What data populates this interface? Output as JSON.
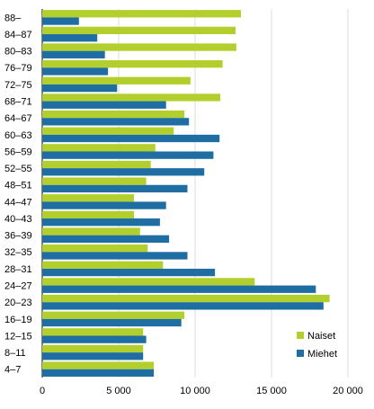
{
  "chart_data": {
    "type": "bar",
    "orientation": "horizontal",
    "categories": [
      "88–",
      "84–87",
      "80–83",
      "76–79",
      "72–75",
      "68–71",
      "64–67",
      "60–63",
      "56–59",
      "52–55",
      "48–51",
      "44–47",
      "40–43",
      "36–39",
      "32–35",
      "28–31",
      "24–27",
      "20–23",
      "16–19",
      "12–15",
      "8–11",
      "4–7"
    ],
    "series": [
      {
        "name": "Naiset",
        "color": "#b3cf2e",
        "values": [
          13000,
          12650,
          12700,
          11800,
          9700,
          11650,
          9300,
          8600,
          7400,
          7100,
          6800,
          6000,
          6000,
          6400,
          6900,
          7900,
          13900,
          18800,
          9300,
          6600,
          6600,
          7300
        ]
      },
      {
        "name": "Miehet",
        "color": "#1f6ea3",
        "values": [
          2400,
          3600,
          4100,
          4300,
          4900,
          8100,
          9600,
          11600,
          11200,
          10600,
          9500,
          8100,
          7700,
          8300,
          9500,
          11300,
          17900,
          18400,
          9100,
          6800,
          6600,
          7300
        ]
      }
    ],
    "xlim": [
      0,
      20000
    ],
    "xticks": [
      0,
      5000,
      10000,
      15000,
      20000
    ],
    "xtick_labels": [
      "0",
      "5 000",
      "10 000",
      "15 000",
      "20 000"
    ],
    "grid": "vertical",
    "legend_position": "bottom-right",
    "title": "",
    "xlabel": "",
    "ylabel": ""
  }
}
